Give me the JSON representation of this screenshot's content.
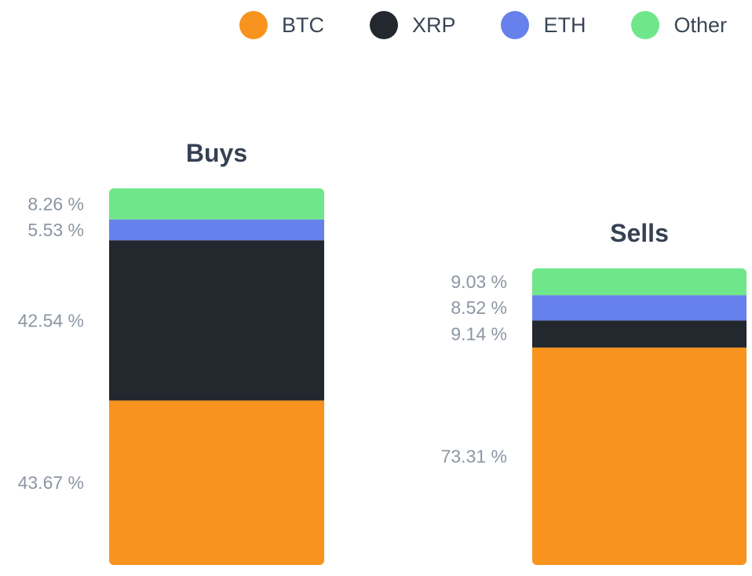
{
  "legend": [
    {
      "name": "BTC",
      "color": "#f7931e"
    },
    {
      "name": "XRP",
      "color": "#23272e"
    },
    {
      "name": "ETH",
      "color": "#6680ec"
    },
    {
      "name": "Other",
      "color": "#70e68a"
    }
  ],
  "chart_data": {
    "type": "bar",
    "stacked": true,
    "categories": [
      "Buys",
      "Sells"
    ],
    "series": [
      {
        "name": "BTC",
        "values": [
          43.67,
          73.31
        ],
        "labels": [
          "43.67 %",
          "73.31 %"
        ]
      },
      {
        "name": "XRP",
        "values": [
          42.54,
          9.14
        ],
        "labels": [
          "42.54 %",
          "9.14 %"
        ]
      },
      {
        "name": "ETH",
        "values": [
          5.53,
          8.52
        ],
        "labels": [
          "5.53 %",
          "8.52 %"
        ]
      },
      {
        "name": "Other",
        "values": [
          8.26,
          9.03
        ],
        "labels": [
          "8.26 %",
          "9.03 %"
        ]
      }
    ],
    "legend_position": "top-right",
    "grid": false
  }
}
